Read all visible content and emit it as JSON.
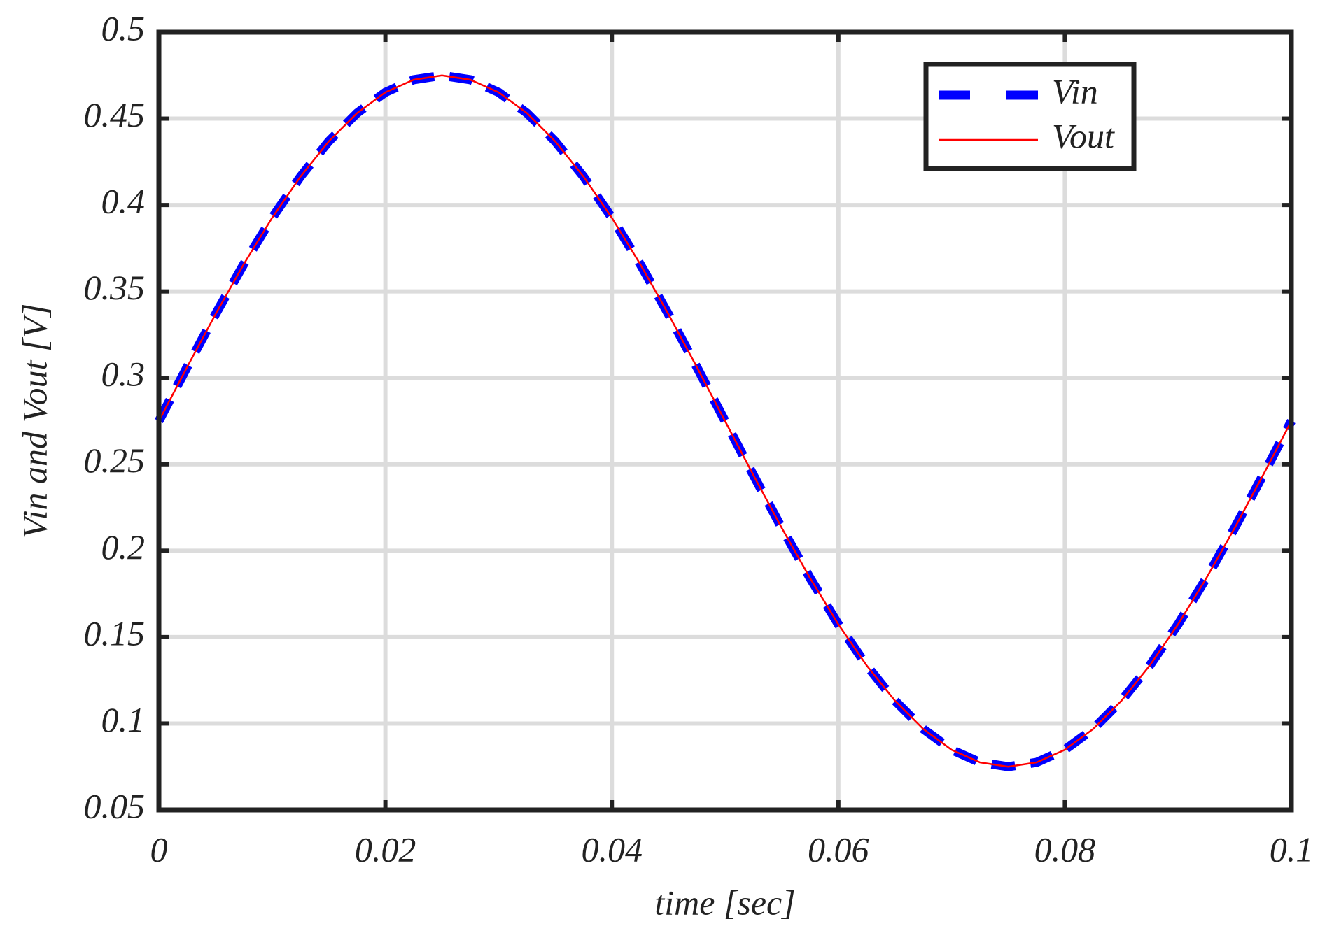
{
  "chart_data": {
    "type": "line",
    "xlabel": "time [sec]",
    "ylabel": "Vin and Vout [V]",
    "x": [
      0,
      0.0025,
      0.005,
      0.0075,
      0.01,
      0.0125,
      0.015,
      0.0175,
      0.02,
      0.0225,
      0.025,
      0.0275,
      0.03,
      0.0325,
      0.035,
      0.0375,
      0.04,
      0.0425,
      0.045,
      0.0475,
      0.05,
      0.0525,
      0.055,
      0.0575,
      0.06,
      0.0625,
      0.065,
      0.0675,
      0.07,
      0.0725,
      0.075,
      0.0775,
      0.08,
      0.0825,
      0.085,
      0.0875,
      0.09,
      0.0925,
      0.095,
      0.0975,
      0.1
    ],
    "series": [
      {
        "name": "Vin",
        "color": "#0000ff",
        "dashed": true,
        "values": [
          0.275,
          0.3063,
          0.3368,
          0.3658,
          0.3926,
          0.4164,
          0.4368,
          0.4532,
          0.4652,
          0.4725,
          0.475,
          0.4725,
          0.4652,
          0.4532,
          0.4368,
          0.4164,
          0.3926,
          0.3658,
          0.3368,
          0.3063,
          0.275,
          0.2437,
          0.2132,
          0.1842,
          0.1574,
          0.1336,
          0.1132,
          0.0968,
          0.0848,
          0.0775,
          0.075,
          0.0775,
          0.0848,
          0.0968,
          0.1132,
          0.1336,
          0.1574,
          0.1842,
          0.2132,
          0.2437,
          0.275
        ]
      },
      {
        "name": "Vout",
        "color": "#ff0000",
        "dashed": false,
        "values": [
          0.275,
          0.3063,
          0.3368,
          0.3658,
          0.3926,
          0.4164,
          0.4368,
          0.4532,
          0.4652,
          0.4725,
          0.475,
          0.4725,
          0.4652,
          0.4532,
          0.4368,
          0.4164,
          0.3926,
          0.3658,
          0.3368,
          0.3063,
          0.275,
          0.2437,
          0.2132,
          0.1842,
          0.1574,
          0.1336,
          0.1132,
          0.0968,
          0.0848,
          0.0775,
          0.075,
          0.0775,
          0.0848,
          0.0968,
          0.1132,
          0.1336,
          0.1574,
          0.1842,
          0.2132,
          0.2437,
          0.275
        ]
      }
    ],
    "xlim": [
      0,
      0.1
    ],
    "xticks": [
      0,
      0.02,
      0.04,
      0.06,
      0.08,
      0.1
    ],
    "ylim": [
      0.05,
      0.5
    ],
    "yticks": [
      0.05,
      0.1,
      0.15,
      0.2,
      0.25,
      0.3,
      0.35,
      0.4,
      0.45,
      0.5
    ],
    "grid": true,
    "legend": "upper-right"
  }
}
